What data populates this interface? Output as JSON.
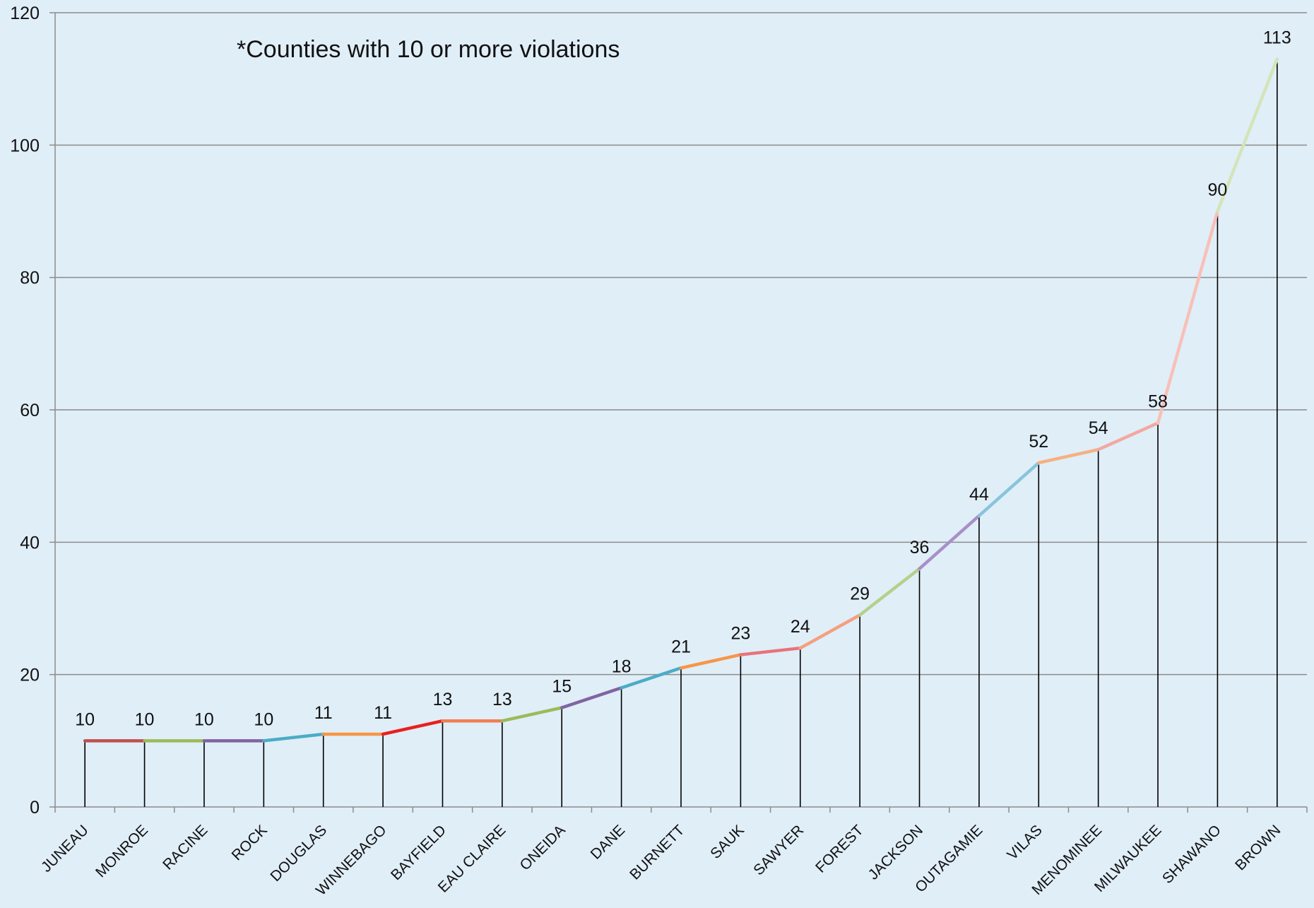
{
  "chart_data": {
    "type": "line",
    "annotation": "*Counties with 10 or more violations",
    "title": "",
    "xlabel": "",
    "ylabel": "",
    "ylim": [
      0,
      120
    ],
    "yticks": [
      "0",
      "20",
      "40",
      "60",
      "80",
      "100",
      "120"
    ],
    "grid": true,
    "legend": "none",
    "drop_lines": true,
    "categories": [
      "JUNEAU",
      "MONROE",
      "RACINE",
      "ROCK",
      "DOUGLAS",
      "WINNEBAGO",
      "BAYFIELD",
      "EAU CLAIRE",
      "ONEIDA",
      "DANE",
      "BURNETT",
      "SAUK",
      "SAWYER",
      "FOREST",
      "JACKSON",
      "OUTAGAMIE",
      "VILAS",
      "MENOMINEE",
      "MILWAUKEE",
      "SHAWANO",
      "BROWN"
    ],
    "values": [
      10,
      10,
      10,
      10,
      11,
      11,
      13,
      13,
      15,
      18,
      21,
      23,
      24,
      29,
      36,
      44,
      52,
      54,
      58,
      90,
      113
    ],
    "data_labels": [
      "10",
      "10",
      "10",
      "10",
      "11",
      "11",
      "13",
      "13",
      "15",
      "18",
      "21",
      "23",
      "24",
      "29",
      "36",
      "44",
      "52",
      "54",
      "58",
      "90",
      "113"
    ],
    "segment_colors": [
      "#c0504d",
      "#9bbb59",
      "#8064a2",
      "#4bacc6",
      "#f79646",
      "#e82020",
      "#f07f50",
      "#9bbb59",
      "#8064a2",
      "#4bacc6",
      "#f79646",
      "#e8737a",
      "#f4a080",
      "#b4d08c",
      "#a890c8",
      "#88c4dc",
      "#f7b080",
      "#f4a8a0",
      "#f8c0b8",
      "#d4e4b8"
    ],
    "colors": {
      "background": "#e0eef8",
      "gridline": "#8c8c8c",
      "axis": "#8c8c8c",
      "drop_line": "#000000"
    }
  }
}
